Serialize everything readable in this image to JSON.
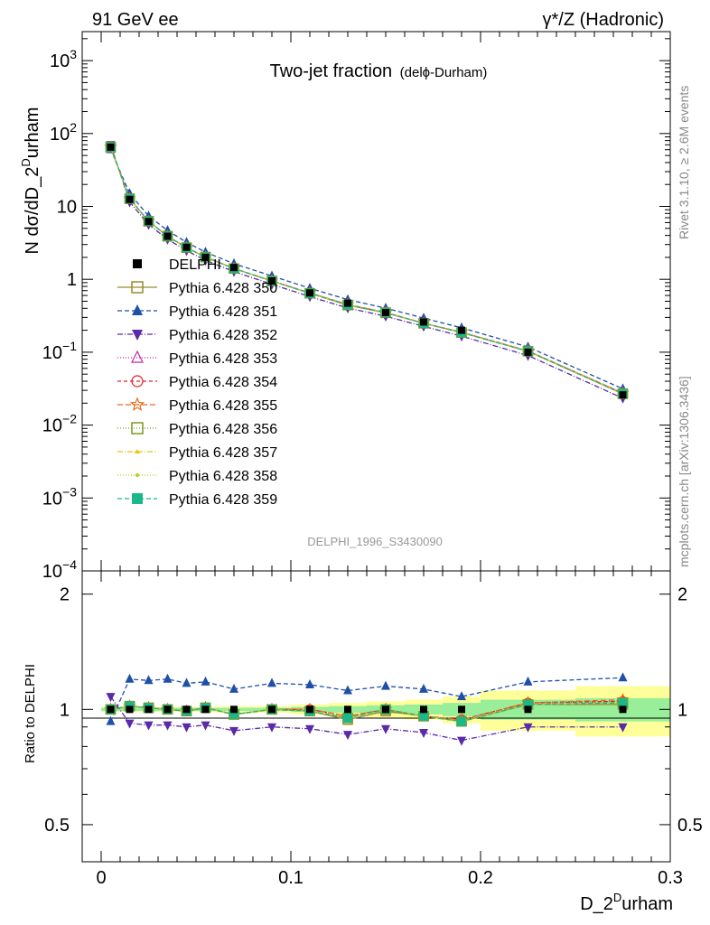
{
  "header": {
    "left": "91 GeV ee",
    "right": "γ*/Z (Hadronic)"
  },
  "side_texts": {
    "rivet": "Rivet 3.1.10, ≥ 2.6M events",
    "mcplots": "mcplots.cern.ch [arXiv:1306.3436]"
  },
  "chart_data": {
    "type": "line",
    "title": "Two-jet fraction",
    "title_suffix": "(delϕ-Durham)",
    "watermark": "DELPHI_1996_S3430090",
    "xlabel": "D_2^Durham",
    "xlabel_base": "D_2",
    "xlabel_sup": "D",
    "xlabel_tail": "urham",
    "ylabel": "N dσ/dD_2^Durham",
    "ylabel_base": "N dσ/dD_2",
    "ylabel_sup": "D",
    "ylabel_tail": "urham",
    "ratio_ylabel": "Ratio to DELPHI",
    "xlim": [
      -0.01,
      0.3
    ],
    "ylim": [
      0.0001,
      2500
    ],
    "ylog": true,
    "ratio_ylim": [
      0.4,
      2.3
    ],
    "ratio_ylog": true,
    "x_ticks": [
      "0",
      "0.1",
      "0.2",
      "0.3"
    ],
    "x_tick_values": [
      0,
      0.1,
      0.2,
      0.3
    ],
    "y_ticks": [
      {
        "base": "10",
        "exp": "3"
      },
      {
        "base": "10",
        "exp": "2"
      },
      {
        "base": "10",
        "exp": ""
      },
      {
        "base": "1",
        "exp": ""
      },
      {
        "base": "10",
        "exp": "−1"
      },
      {
        "base": "10",
        "exp": "−2"
      },
      {
        "base": "10",
        "exp": "−3"
      },
      {
        "base": "10",
        "exp": "−4"
      }
    ],
    "y_tick_values": [
      1000,
      100,
      10,
      1,
      0.1,
      0.01,
      0.001,
      0.0001
    ],
    "ratio_ticks": [
      "2",
      "1",
      "0.5"
    ],
    "ratio_tick_values": [
      2,
      1,
      0.5
    ],
    "legend_position": "middle-left",
    "x": [
      0.005,
      0.015,
      0.025,
      0.035,
      0.045,
      0.055,
      0.07,
      0.09,
      0.11,
      0.13,
      0.15,
      0.17,
      0.19,
      0.225,
      0.275
    ],
    "data": {
      "name": "DELPHI",
      "values": [
        65,
        12.5,
        6.2,
        3.9,
        2.75,
        2.0,
        1.45,
        0.95,
        0.65,
        0.47,
        0.35,
        0.26,
        0.2,
        0.1,
        0.026
      ]
    },
    "band_edges": [
      0,
      0.01,
      0.02,
      0.03,
      0.04,
      0.05,
      0.06,
      0.08,
      0.1,
      0.12,
      0.14,
      0.16,
      0.18,
      0.2,
      0.25,
      0.3
    ],
    "band_inner": [
      0.01,
      0.01,
      0.01,
      0.01,
      0.01,
      0.01,
      0.01,
      0.01,
      0.015,
      0.02,
      0.025,
      0.03,
      0.04,
      0.06,
      0.07
    ],
    "band_outer": [
      0.015,
      0.015,
      0.015,
      0.015,
      0.015,
      0.015,
      0.02,
      0.02,
      0.03,
      0.04,
      0.05,
      0.06,
      0.08,
      0.12,
      0.15
    ],
    "series": [
      {
        "name": "Pythia 6.428 350",
        "color": "#9a8a2a",
        "marker": "square-open",
        "dash": "",
        "ratio": [
          1.0,
          1.02,
          1.01,
          1.0,
          0.99,
          1.01,
          0.97,
          1.0,
          0.99,
          0.94,
          0.99,
          0.96,
          0.93,
          1.03,
          1.03
        ]
      },
      {
        "name": "Pythia 6.428 351",
        "color": "#1f4fa8",
        "marker": "triangle-up",
        "dash": "5,3",
        "ratio": [
          0.93,
          1.2,
          1.19,
          1.2,
          1.17,
          1.18,
          1.13,
          1.17,
          1.16,
          1.12,
          1.15,
          1.13,
          1.08,
          1.18,
          1.21
        ]
      },
      {
        "name": "Pythia 6.428 352",
        "color": "#5a2aa8",
        "marker": "triangle-down",
        "dash": "6,2,1,2",
        "ratio": [
          1.08,
          0.92,
          0.91,
          0.91,
          0.9,
          0.91,
          0.88,
          0.9,
          0.89,
          0.86,
          0.89,
          0.87,
          0.83,
          0.9,
          0.9
        ]
      },
      {
        "name": "Pythia 6.428 353",
        "color": "#c02aa8",
        "marker": "triangle-open",
        "dash": "1,2",
        "ratio": [
          1.0,
          1.02,
          1.01,
          1.0,
          0.99,
          1.01,
          0.97,
          1.0,
          1.0,
          0.96,
          1.0,
          0.96,
          0.94,
          1.04,
          1.05
        ]
      },
      {
        "name": "Pythia 6.428 354",
        "color": "#e0202a",
        "marker": "circle-open",
        "dash": "4,3",
        "ratio": [
          1.0,
          1.02,
          1.01,
          1.0,
          0.99,
          1.01,
          0.97,
          1.0,
          1.0,
          0.96,
          1.0,
          0.96,
          0.94,
          1.04,
          1.05
        ]
      },
      {
        "name": "Pythia 6.428 355",
        "color": "#e86a1a",
        "marker": "star-open",
        "dash": "6,3",
        "ratio": [
          1.0,
          1.02,
          1.01,
          1.0,
          0.99,
          1.01,
          0.97,
          1.0,
          1.0,
          0.96,
          1.0,
          0.96,
          0.94,
          1.04,
          1.06
        ]
      },
      {
        "name": "Pythia 6.428 356",
        "color": "#7a9a1a",
        "marker": "square-open",
        "dash": "1,2",
        "ratio": [
          1.0,
          1.02,
          1.01,
          1.0,
          0.99,
          1.01,
          0.97,
          1.0,
          0.99,
          0.95,
          1.0,
          0.96,
          0.93,
          1.03,
          1.04
        ]
      },
      {
        "name": "Pythia 6.428 357",
        "color": "#e8c21a",
        "marker": "tri-small",
        "dash": "6,2,1,2",
        "ratio": [
          1.0,
          1.02,
          1.01,
          1.0,
          0.99,
          1.01,
          0.97,
          1.0,
          0.99,
          0.95,
          1.0,
          0.96,
          0.93,
          1.03,
          1.04
        ]
      },
      {
        "name": "Pythia 6.428 358",
        "color": "#b8d21a",
        "marker": "dot",
        "dash": "1,2",
        "ratio": [
          1.0,
          1.02,
          1.01,
          1.0,
          0.99,
          1.01,
          0.97,
          1.0,
          0.99,
          0.95,
          1.0,
          0.96,
          0.93,
          1.03,
          1.04
        ]
      },
      {
        "name": "Pythia 6.428 359",
        "color": "#1ab88a",
        "marker": "square",
        "dash": "5,3",
        "ratio": [
          1.0,
          1.02,
          1.01,
          1.0,
          0.99,
          1.01,
          0.97,
          1.0,
          0.99,
          0.95,
          1.0,
          0.96,
          0.93,
          1.03,
          1.04
        ]
      }
    ]
  }
}
